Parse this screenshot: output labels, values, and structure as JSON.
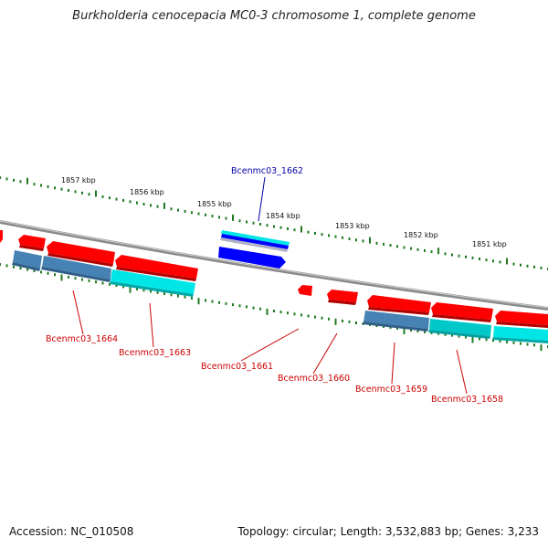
{
  "title": "Burkholderia cenocepacia MC0-3 chromosome 1, complete genome",
  "footer": {
    "accession": "Accession: NC_010508",
    "topology": "Topology: circular; Length: 3,532,883 bp; Genes: 3,233"
  },
  "colors": {
    "backbone": "#8a8a8a",
    "tick": "#1f7a1f",
    "gene_red": "#ff0000",
    "gene_blue": "#0000ff",
    "gene_cyan": "#00e5e5",
    "gene_steel": "#4682b4",
    "label_red": "#cc0000",
    "label_blue": "#0000aa"
  },
  "scale_labels": [
    "1857 kbp",
    "1856 kbp",
    "1855 kbp",
    "1854 kbp",
    "1853 kbp",
    "1852 kbp",
    "1851 kbp"
  ],
  "gene_labels": [
    {
      "text": "Bcenmc03_1662",
      "strand": "top",
      "color": "#0000aa"
    },
    {
      "text": "Bcenmc03_1664",
      "strand": "bottom",
      "color": "#cc0000"
    },
    {
      "text": "Bcenmc03_1663",
      "strand": "bottom",
      "color": "#cc0000"
    },
    {
      "text": "Bcenmc03_1661",
      "strand": "bottom",
      "color": "#cc0000"
    },
    {
      "text": "Bcenmc03_1660",
      "strand": "bottom",
      "color": "#cc0000"
    },
    {
      "text": "Bcenmc03_1659",
      "strand": "bottom",
      "color": "#cc0000"
    },
    {
      "text": "Bcenmc03_1658",
      "strand": "bottom",
      "color": "#cc0000"
    }
  ]
}
